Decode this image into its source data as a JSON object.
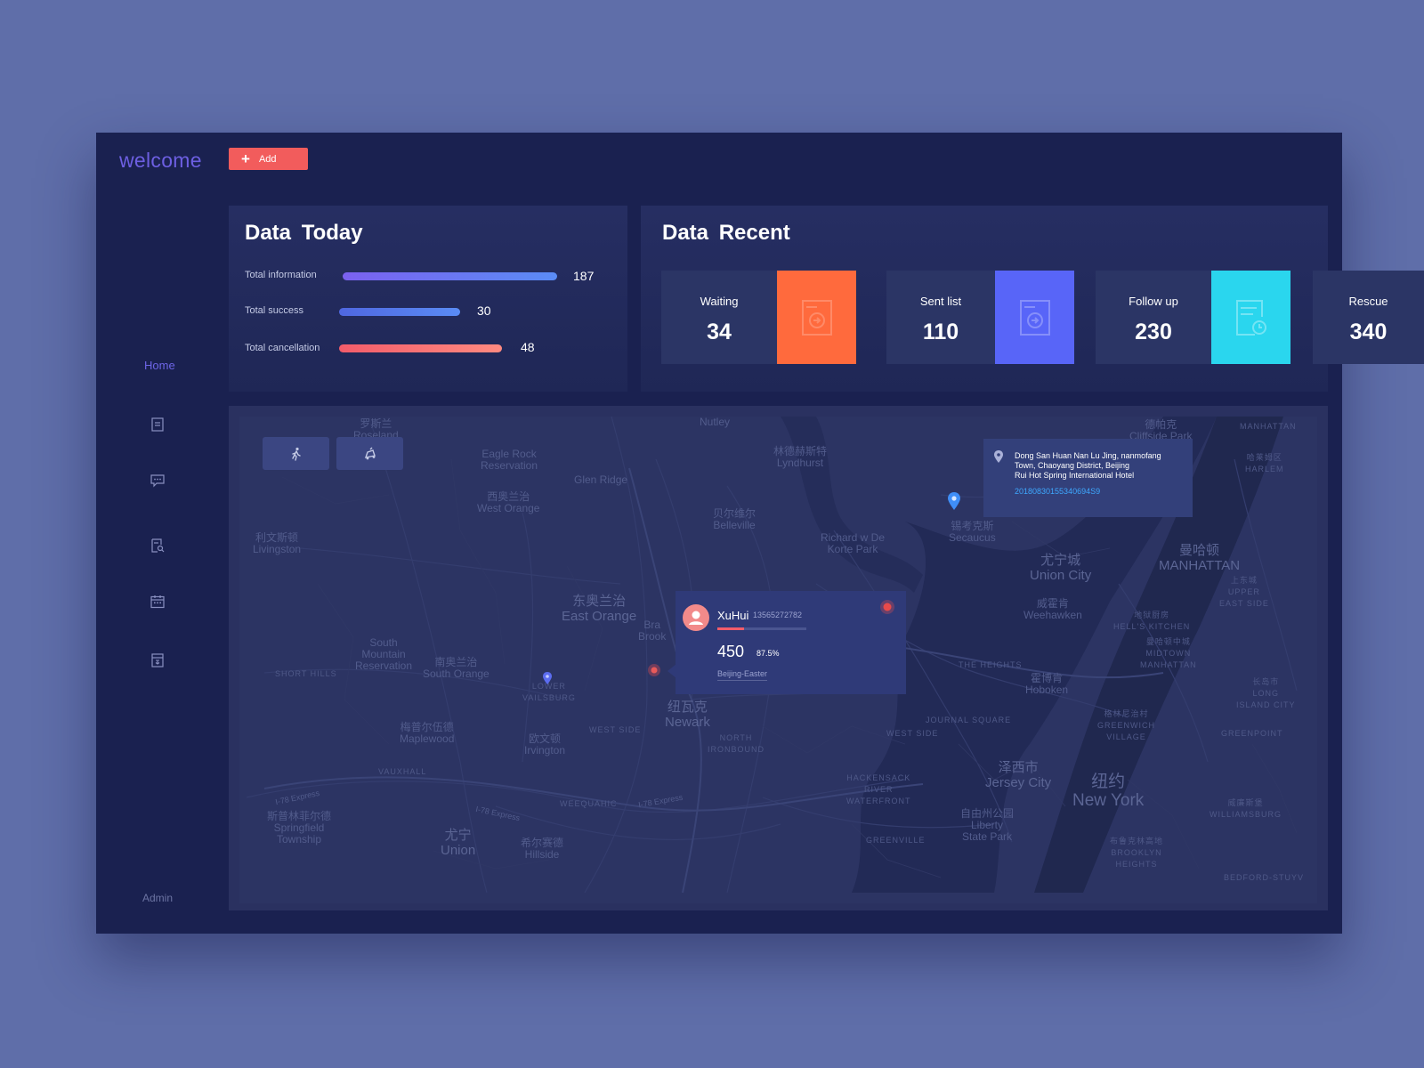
{
  "header": {
    "logo": "welcome",
    "add_label": "Add"
  },
  "sidebar": {
    "home_label": "Home",
    "icons": [
      "document-icon",
      "message-icon",
      "search-document-icon",
      "calendar-icon",
      "archive-icon"
    ],
    "admin_label": "Admin"
  },
  "today": {
    "title": "Data  Today",
    "stats": [
      {
        "label": "Total information",
        "value": "187",
        "color_start": "#7b61f0",
        "color_end": "#5a8cf5"
      },
      {
        "label": "Total success",
        "value": "30",
        "color_start": "#4f67e0",
        "color_end": "#5a8cf5"
      },
      {
        "label": "Total cancellation",
        "value": "48",
        "color_start": "#f25c6a",
        "color_end": "#ff8a80"
      }
    ]
  },
  "recent": {
    "title": "Data  Recent",
    "cards": [
      {
        "label": "Waiting",
        "value": "34",
        "color": "#ff6a3d",
        "icon": "scan-in-icon"
      },
      {
        "label": "Sent list",
        "value": "110",
        "color": "#5865f8",
        "icon": "scan-in-icon"
      },
      {
        "label": "Follow up",
        "value": "230",
        "color": "#2ad6ee",
        "icon": "clock-document-icon"
      },
      {
        "label": "Rescue",
        "value": "340",
        "color": "#2b3565",
        "icon": ""
      }
    ]
  },
  "map": {
    "labels": [
      {
        "cn": "罗斯兰",
        "en": "Roseland"
      },
      {
        "cn": "",
        "en": "Eagle Rock\nReservation"
      },
      {
        "cn": "",
        "en": "Glen Ridge"
      },
      {
        "cn": "",
        "en": "Nutley"
      },
      {
        "cn": "林德赫斯特",
        "en": "Lyndhurst"
      },
      {
        "cn": "德帕克",
        "en": "Cliffside Park"
      },
      {
        "cn": "",
        "en": "MANHATTAN"
      },
      {
        "cn": "哈莱姆区",
        "en": "HARLEM"
      },
      {
        "cn": "西奥兰治",
        "en": "West Orange"
      },
      {
        "cn": "贝尔维尔",
        "en": "Belleville"
      },
      {
        "cn": "利文斯顿",
        "en": "Livingston"
      },
      {
        "cn": "",
        "en": "Richard w De\nKorte Park"
      },
      {
        "cn": "锡考克斯",
        "en": "Secaucus"
      },
      {
        "cn": "尤宁城",
        "en": "Union City"
      },
      {
        "cn": "曼哈顿",
        "en": "MANHATTAN"
      },
      {
        "cn": "上东城",
        "en": "UPPER\nEAST SIDE"
      },
      {
        "cn": "东奥兰治",
        "en": "East Orange"
      },
      {
        "cn": "威霍肯",
        "en": "Weehawken"
      },
      {
        "cn": "地狱厨房",
        "en": "HELL'S KITCHEN"
      },
      {
        "cn": "曼哈顿中城",
        "en": "MIDTOWN\nMANHATTAN"
      },
      {
        "cn": "",
        "en": "South\nMountain\nReservation"
      },
      {
        "cn": "南奥兰治",
        "en": "South Orange"
      },
      {
        "cn": "",
        "en": "SHORT HILLS"
      },
      {
        "cn": "",
        "en": "LOWER\nVAILSBURG"
      },
      {
        "cn": "",
        "en": "THE HEIGHTS"
      },
      {
        "cn": "霍博肯",
        "en": "Hoboken"
      },
      {
        "cn": "长岛市",
        "en": "LONG\nISLAND CITY"
      },
      {
        "cn": "纽瓦克",
        "en": "Newark"
      },
      {
        "cn": "",
        "en": "NORTH\nIRONBOUND"
      },
      {
        "cn": "",
        "en": "WEST SIDE"
      },
      {
        "cn": "",
        "en": "JOURNAL SQUARE"
      },
      {
        "cn": "",
        "en": "WEST SIDE"
      },
      {
        "cn": "格林尼治村",
        "en": "GREENWICH\nVILLAGE"
      },
      {
        "cn": "",
        "en": "GREENPOINT"
      },
      {
        "cn": "梅普尔伍德",
        "en": "Maplewood"
      },
      {
        "cn": "欧文顿",
        "en": "Irvington"
      },
      {
        "cn": "",
        "en": "VAUXHALL"
      },
      {
        "cn": "泽西市",
        "en": "Jersey City"
      },
      {
        "cn": "纽约",
        "en": "New York"
      },
      {
        "cn": "",
        "en": "HACKENSACK\nRIVER\nWATERFRONT"
      },
      {
        "cn": "",
        "en": "WEEQUAHIC"
      },
      {
        "cn": "斯普林菲尔德",
        "en": "Springfield\nTownship"
      },
      {
        "cn": "自由州公园",
        "en": "Liberty\nState Park"
      },
      {
        "cn": "威廉斯堡",
        "en": "WILLIAMSBURG"
      },
      {
        "cn": "尤宁",
        "en": "Union"
      },
      {
        "cn": "希尔赛德",
        "en": "Hillside"
      },
      {
        "cn": "",
        "en": "GREENVILLE"
      },
      {
        "cn": "布鲁克林高地",
        "en": "BROOKLYN\nHEIGHTS"
      },
      {
        "cn": "",
        "en": "BEDFORD-STUYV"
      },
      {
        "cn": "",
        "en": "I-78 Express"
      },
      {
        "cn": "",
        "en": "I-78 Express"
      },
      {
        "cn": "",
        "en": "I-78 Express"
      },
      {
        "cn": "",
        "en": "Bra\nBrook"
      }
    ],
    "controls": [
      "walk-icon",
      "drive-icon"
    ],
    "user_popup": {
      "name": "XuHui",
      "phone": "13565272782",
      "value": "450",
      "percent": "87.5%",
      "progress": 0.3,
      "route": "Beijing-Easter"
    },
    "address_popup": {
      "line1": "Dong San Huan Nan Lu Jing, nanmofang",
      "line2": "Town, Chaoyang District, Beijing",
      "line3": "Rui Hot Spring International Hotel",
      "code": "20180830155340694S9"
    }
  }
}
